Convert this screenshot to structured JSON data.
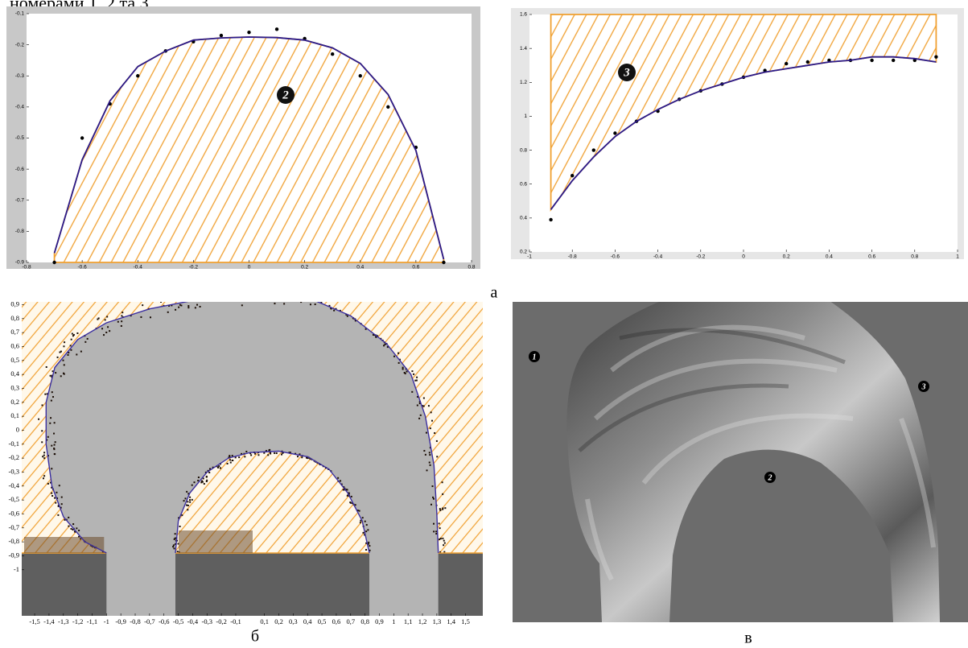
{
  "caption": "номерами 1, 2 та 3.",
  "panel_labels": [
    "а",
    "б",
    "в"
  ],
  "photo_labels": [
    "1",
    "2",
    "3"
  ],
  "chart_data": [
    {
      "type": "scatter",
      "annotation": "2",
      "hatch": "below",
      "hatch_color": "#f0a030",
      "xlim": [
        -0.8,
        0.8
      ],
      "ylim": [
        -0.9,
        -0.1
      ],
      "xticks": [
        -0.8,
        -0.6,
        -0.4,
        -0.2,
        0,
        0.2,
        0.4,
        0.6,
        0.8
      ],
      "yticks": [
        -0.9,
        -0.8,
        -0.7,
        -0.6,
        -0.5,
        -0.4,
        -0.3,
        -0.2,
        -0.1
      ],
      "series": [
        {
          "mode": "markers",
          "color": "#000000",
          "x": [
            -0.7,
            -0.6,
            -0.5,
            -0.4,
            -0.3,
            -0.2,
            -0.1,
            0,
            0.1,
            0.2,
            0.3,
            0.4,
            0.5,
            0.6,
            0.7
          ],
          "values": [
            -0.9,
            -0.5,
            -0.39,
            -0.3,
            -0.22,
            -0.19,
            -0.17,
            -0.16,
            -0.15,
            -0.18,
            -0.23,
            -0.3,
            -0.4,
            -0.53,
            -0.9
          ]
        },
        {
          "mode": "line",
          "color": "#2a1a8c",
          "x": [
            -0.7,
            -0.6,
            -0.5,
            -0.4,
            -0.3,
            -0.2,
            -0.1,
            0,
            0.1,
            0.2,
            0.3,
            0.4,
            0.5,
            0.6,
            0.7
          ],
          "values": [
            -0.87,
            -0.57,
            -0.38,
            -0.27,
            -0.22,
            -0.185,
            -0.178,
            -0.175,
            -0.177,
            -0.185,
            -0.21,
            -0.26,
            -0.36,
            -0.54,
            -0.89
          ]
        }
      ]
    },
    {
      "type": "scatter",
      "annotation": "3",
      "hatch": "above",
      "hatch_color": "#f0a030",
      "xlim": [
        -1,
        1
      ],
      "ylim": [
        0.2,
        1.6
      ],
      "xticks": [
        -1,
        -0.8,
        -0.6,
        -0.4,
        -0.2,
        0,
        0.2,
        0.4,
        0.6,
        0.8,
        1
      ],
      "yticks": [
        0.2,
        0.4,
        0.6,
        0.8,
        1,
        1.2,
        1.4,
        1.6
      ],
      "series": [
        {
          "mode": "markers",
          "color": "#000000",
          "x": [
            -0.9,
            -0.8,
            -0.7,
            -0.6,
            -0.5,
            -0.4,
            -0.3,
            -0.2,
            -0.1,
            0,
            0.1,
            0.2,
            0.3,
            0.4,
            0.5,
            0.6,
            0.7,
            0.8,
            0.9
          ],
          "values": [
            0.39,
            0.65,
            0.8,
            0.9,
            0.97,
            1.03,
            1.1,
            1.15,
            1.19,
            1.23,
            1.27,
            1.31,
            1.32,
            1.33,
            1.33,
            1.33,
            1.33,
            1.33,
            1.35
          ]
        },
        {
          "mode": "line",
          "color": "#2a1a8c",
          "x": [
            -0.9,
            -0.8,
            -0.7,
            -0.6,
            -0.5,
            -0.4,
            -0.3,
            -0.2,
            -0.1,
            0,
            0.1,
            0.2,
            0.3,
            0.4,
            0.5,
            0.6,
            0.7,
            0.8,
            0.9
          ],
          "values": [
            0.45,
            0.62,
            0.76,
            0.88,
            0.97,
            1.04,
            1.1,
            1.15,
            1.19,
            1.23,
            1.26,
            1.28,
            1.3,
            1.32,
            1.33,
            1.35,
            1.35,
            1.34,
            1.32
          ]
        }
      ]
    },
    {
      "type": "line",
      "hatch_color": "#f0a030",
      "xlim": [
        -1.59,
        1.62
      ],
      "ylim": [
        -1.33,
        0.92
      ],
      "xticks": [
        {
          "value": -1.5,
          "label": "-1,5"
        },
        {
          "value": -1.4,
          "label": "-1,4"
        },
        {
          "value": -1.3,
          "label": "-1,3"
        },
        {
          "value": -1.2,
          "label": "-1,2"
        },
        {
          "value": -1.1,
          "label": "-1,1"
        },
        -1,
        {
          "value": -0.9,
          "label": "-0,9"
        },
        {
          "value": -0.8,
          "label": "-0,8"
        },
        {
          "value": -0.7,
          "label": "-0,7"
        },
        {
          "value": -0.6,
          "label": "-0,6"
        },
        {
          "value": -0.5,
          "label": "-0,5"
        },
        {
          "value": -0.4,
          "label": "-0,4"
        },
        {
          "value": -0.3,
          "label": "-0,3"
        },
        {
          "value": -0.2,
          "label": "-0,2"
        },
        {
          "value": -0.1,
          "label": "-0,1"
        },
        {
          "value": 0.1,
          "label": "0,1"
        },
        {
          "value": 0.2,
          "label": "0,2"
        },
        {
          "value": 0.3,
          "label": "0,3"
        },
        {
          "value": 0.4,
          "label": "0,4"
        },
        {
          "value": 0.5,
          "label": "0,5"
        },
        {
          "value": 0.6,
          "label": "0,6"
        },
        {
          "value": 0.7,
          "label": "0,7"
        },
        {
          "value": 0.8,
          "label": "0,8"
        },
        {
          "value": 0.9,
          "label": "0,9"
        },
        1,
        {
          "value": 1.1,
          "label": "1,1"
        },
        {
          "value": 1.2,
          "label": "1,2"
        },
        {
          "value": 1.3,
          "label": "1,3"
        },
        {
          "value": 1.4,
          "label": "1,4"
        },
        {
          "value": 1.5,
          "label": "1,5"
        }
      ],
      "yticks": [
        {
          "value": 0.9,
          "label": "0,9"
        },
        {
          "value": 0.8,
          "label": "0,8"
        },
        {
          "value": 0.7,
          "label": "0,7"
        },
        {
          "value": 0.6,
          "label": "0,6"
        },
        {
          "value": 0.5,
          "label": "0,5"
        },
        {
          "value": 0.4,
          "label": "0,4"
        },
        {
          "value": 0.3,
          "label": "0,3"
        },
        {
          "value": 0.2,
          "label": "0,2"
        },
        {
          "value": 0.1,
          "label": "0,1"
        },
        0,
        {
          "value": -0.1,
          "label": "-0,1"
        },
        {
          "value": -0.2,
          "label": "-0,2"
        },
        {
          "value": -0.3,
          "label": "-0,3"
        },
        {
          "value": -0.4,
          "label": "-0,4"
        },
        {
          "value": -0.5,
          "label": "-0,5"
        },
        {
          "value": -0.6,
          "label": "-0,6"
        },
        {
          "value": -0.7,
          "label": "-0,7"
        },
        {
          "value": -0.8,
          "label": "-0,8"
        },
        {
          "value": -0.9,
          "label": "-0,9"
        },
        -1
      ],
      "series": [
        {
          "color": "#3b2fa0",
          "x": [
            -1.0,
            -1.15,
            -1.3,
            -1.38,
            -1.42,
            -1.42,
            -1.36,
            -1.2,
            -1.0,
            -0.7,
            -0.4,
            0.45,
            0.7,
            0.95,
            1.12,
            1.22,
            1.28,
            1.3,
            1.31
          ],
          "values": [
            -0.88,
            -0.8,
            -0.62,
            -0.4,
            -0.1,
            0.2,
            0.45,
            0.65,
            0.77,
            0.87,
            0.93,
            0.93,
            0.82,
            0.62,
            0.4,
            0.1,
            -0.25,
            -0.6,
            -0.88
          ]
        },
        {
          "color": "#3b2fa0",
          "x": [
            -0.52,
            -0.5,
            -0.42,
            -0.3,
            -0.15,
            0,
            0.2,
            0.4,
            0.55,
            0.68,
            0.78,
            0.83
          ],
          "values": [
            -0.88,
            -0.65,
            -0.45,
            -0.3,
            -0.2,
            -0.16,
            -0.15,
            -0.19,
            -0.28,
            -0.45,
            -0.65,
            -0.88
          ]
        }
      ]
    }
  ]
}
